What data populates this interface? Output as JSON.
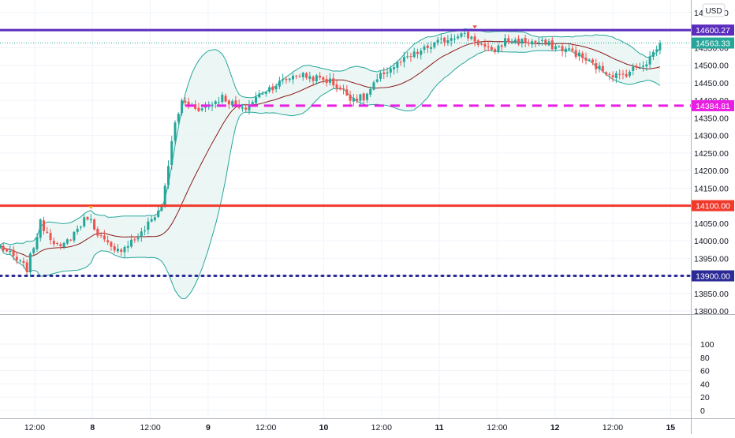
{
  "chart_data": {
    "type": "candlestick",
    "currency_label": "USD",
    "price_axis": {
      "min": 13800,
      "max": 14650,
      "ticks": [
        13800,
        13850,
        13900,
        13950,
        14000,
        14050,
        14100,
        14150,
        14200,
        14250,
        14300,
        14350,
        14400,
        14450,
        14500,
        14550,
        14600,
        14650
      ],
      "tick_labels": [
        "13800.00",
        "13850.00",
        "13900.00",
        "13950.00",
        "14000.00",
        "14050.00",
        "14100.00",
        "14150.00",
        "14200.00",
        "14250.00",
        "14300.00",
        "14350.00",
        "14400.00",
        "14450.00",
        "14500.00",
        "14550.00",
        "14600.00",
        "14650.00"
      ]
    },
    "oscillator_axis": {
      "min": -10,
      "max": 110,
      "ticks": [
        0,
        20,
        40,
        60,
        80,
        100
      ],
      "tick_labels": [
        "0",
        "20",
        "40",
        "60",
        "80",
        "100"
      ]
    },
    "time_axis": {
      "labels": [
        "12:00",
        "8",
        "12:00",
        "9",
        "12:00",
        "10",
        "12:00",
        "11",
        "12:00",
        "12",
        "12:00",
        "15"
      ],
      "bold": [
        false,
        true,
        false,
        true,
        false,
        true,
        false,
        true,
        false,
        true,
        false,
        true
      ]
    },
    "horizontal_levels": [
      {
        "value": 14600.27,
        "label": "14600.27",
        "color": "#5b2dbd",
        "style": "solid"
      },
      {
        "value": 14384.81,
        "label": "14384.81",
        "color": "#e91ee3",
        "style": "dashed",
        "starts_at_bar": 55
      },
      {
        "value": 14100.0,
        "label": "14100.00",
        "color": "#f0392b",
        "style": "solid"
      },
      {
        "value": 13900.0,
        "label": "13900.00",
        "color": "#2b2a96",
        "style": "dotted"
      }
    ],
    "last_price": {
      "value": 14563.33,
      "label": "14563.33",
      "color": "#26a69a"
    },
    "bollinger": {
      "length": 20,
      "multiplier": 2,
      "basis_color": "#8b1a1a",
      "band_color": "#26a69a",
      "fill": "#e6f4f2"
    },
    "candle_colors": {
      "up": "#26a69a",
      "down": "#ef5350"
    },
    "markers": [
      {
        "bar": 27,
        "type": "triangle-down",
        "color": "#f5a623",
        "position": "above"
      },
      {
        "bar": 141,
        "type": "triangle-down",
        "color": "#ef5350",
        "position": "above"
      }
    ],
    "path_anchors": [
      [
        0,
        13985
      ],
      [
        8,
        13920
      ],
      [
        12,
        14050
      ],
      [
        18,
        13975
      ],
      [
        26,
        14070
      ],
      [
        30,
        14010
      ],
      [
        34,
        13965
      ],
      [
        42,
        14020
      ],
      [
        48,
        14100
      ],
      [
        52,
        14335
      ],
      [
        54,
        14395
      ],
      [
        60,
        14375
      ],
      [
        66,
        14410
      ],
      [
        72,
        14370
      ],
      [
        78,
        14425
      ],
      [
        88,
        14475
      ],
      [
        98,
        14455
      ],
      [
        104,
        14410
      ],
      [
        108,
        14405
      ],
      [
        114,
        14480
      ],
      [
        122,
        14525
      ],
      [
        128,
        14555
      ],
      [
        136,
        14590
      ],
      [
        140,
        14580
      ],
      [
        146,
        14535
      ],
      [
        150,
        14570
      ],
      [
        160,
        14565
      ],
      [
        170,
        14540
      ],
      [
        178,
        14490
      ],
      [
        184,
        14468
      ],
      [
        192,
        14510
      ],
      [
        196,
        14563
      ]
    ],
    "time_range": {
      "start_bar": 0,
      "end_bar": 196
    },
    "seed": 7
  }
}
